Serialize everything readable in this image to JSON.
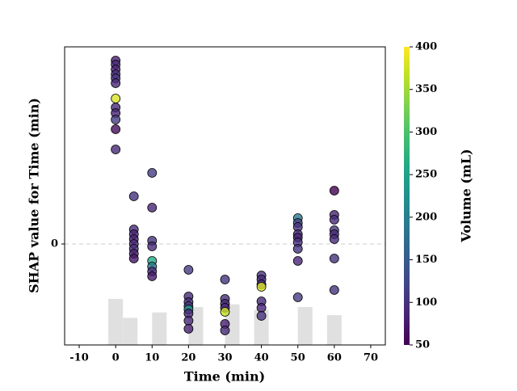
{
  "chart_data": {
    "type": "scatter",
    "xlabel": "Time (min)",
    "ylabel": "SHAP value for Time (min)",
    "xlim": [
      -14,
      74
    ],
    "xticks": [
      -10,
      0,
      10,
      20,
      30,
      40,
      50,
      60,
      70
    ],
    "ylim": [
      -1.25,
      2.44
    ],
    "yticks": [
      0
    ],
    "colormap": "viridis",
    "colorbar": {
      "label": "Volume (mL)",
      "lim": [
        50,
        400
      ],
      "ticks": [
        50,
        100,
        150,
        200,
        250,
        300,
        350,
        400
      ]
    },
    "histogram": {
      "color": "#e0e0e0",
      "bins": [
        [
          -2,
          2
        ],
        [
          2,
          6
        ],
        [
          10,
          14
        ],
        [
          20,
          24
        ],
        [
          30,
          34
        ],
        [
          38,
          42
        ],
        [
          50,
          54
        ],
        [
          58,
          62
        ]
      ],
      "counts": [
        17,
        10,
        12,
        14,
        15,
        13,
        14,
        11
      ]
    },
    "points": {
      "x": [
        0,
        0,
        0,
        0,
        0,
        0,
        0,
        0,
        0,
        0,
        0,
        0,
        5,
        5,
        5,
        5,
        5,
        5,
        5,
        5,
        10,
        10,
        10,
        10,
        10,
        10,
        10,
        10,
        20,
        20,
        20,
        20,
        20,
        20,
        20,
        20,
        30,
        30,
        30,
        30,
        30,
        30,
        30,
        40,
        40,
        40,
        40,
        40,
        40,
        40,
        50,
        50,
        50,
        50,
        50,
        50,
        50,
        50,
        50,
        60,
        60,
        60,
        60,
        60,
        60,
        60,
        60
      ],
      "y": [
        2.27,
        2.22,
        2.16,
        2.1,
        2.05,
        1.99,
        1.8,
        1.69,
        1.62,
        1.54,
        1.42,
        1.17,
        0.59,
        0.18,
        0.12,
        0.06,
        0.0,
        -0.06,
        -0.12,
        -0.18,
        0.88,
        0.45,
        0.04,
        -0.03,
        -0.21,
        -0.28,
        -0.34,
        -0.4,
        -0.32,
        -0.65,
        -0.72,
        -0.77,
        -0.81,
        -0.86,
        -0.95,
        -1.05,
        -0.44,
        -0.68,
        -0.74,
        -0.79,
        -0.84,
        -0.99,
        -1.07,
        -0.39,
        -0.44,
        -0.5,
        -0.53,
        -0.71,
        -0.79,
        -0.89,
        0.32,
        0.26,
        0.21,
        0.12,
        0.08,
        0.02,
        -0.06,
        -0.21,
        -0.66,
        0.66,
        0.36,
        0.3,
        0.17,
        0.12,
        0.06,
        -0.18,
        -0.57
      ],
      "volume": [
        80,
        90,
        85,
        95,
        100,
        90,
        380,
        90,
        85,
        110,
        60,
        90,
        100,
        90,
        85,
        80,
        90,
        95,
        80,
        70,
        110,
        85,
        100,
        90,
        260,
        190,
        90,
        75,
        110,
        90,
        95,
        100,
        230,
        85,
        90,
        80,
        100,
        95,
        90,
        85,
        370,
        80,
        90,
        100,
        90,
        95,
        380,
        90,
        85,
        100,
        190,
        120,
        100,
        90,
        80,
        95,
        100,
        85,
        110,
        50,
        85,
        90,
        100,
        95,
        90,
        100,
        100
      ]
    }
  }
}
